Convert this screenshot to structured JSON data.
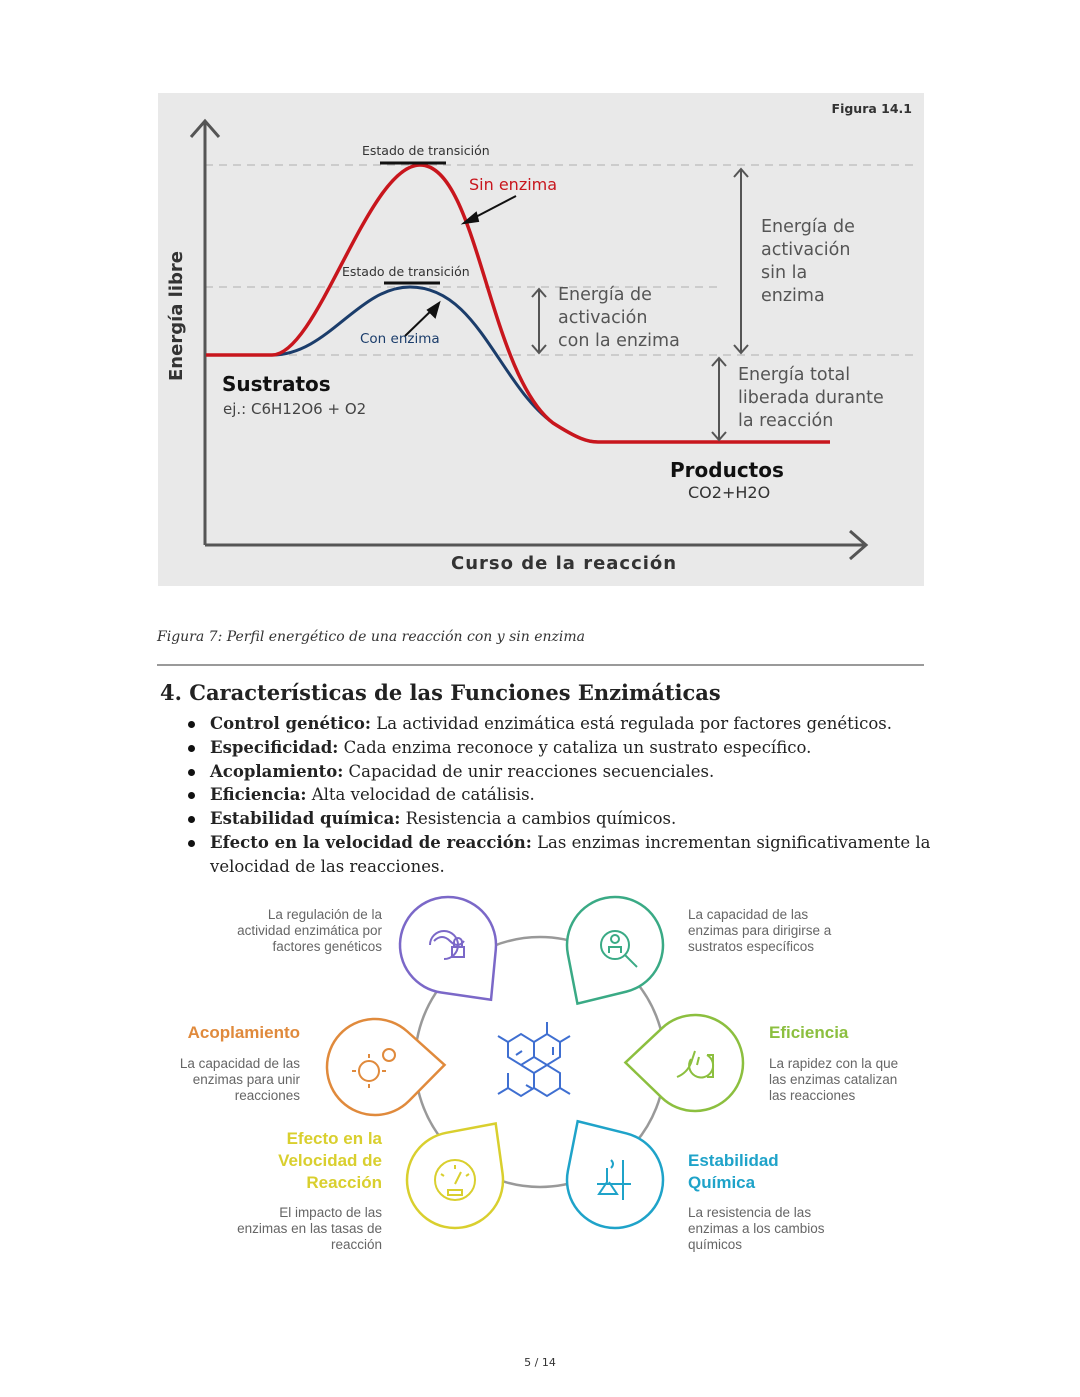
{
  "figure1": {
    "tag": "Figura 14.1",
    "y_axis_label": "Energía libre",
    "x_axis_label": "Curso de la reacción",
    "transition_state_label_1": "Estado de transición",
    "transition_state_label_2": "Estado de transición",
    "without_enzyme": "Sin enzima",
    "with_enzyme": "Con enzima",
    "activation_with": [
      "Energía de",
      "activación",
      "con la enzima"
    ],
    "activation_without": [
      "Energía de",
      "activación",
      "sin la",
      "enzima"
    ],
    "total_energy": [
      "Energía total",
      "liberada durante",
      "la reacción"
    ],
    "substrates_title": "Sustratos",
    "substrates_example": "ej.:  C6H12O6 + O2",
    "products_title": "Productos",
    "products_formula": "CO2+H2O",
    "colors": {
      "without_enzyme": "#c8161d",
      "with_enzyme": "#1b3d6b"
    }
  },
  "caption": "Figura 7: Perfil energético de una reacción con y sin enzima",
  "section": {
    "title": "4. Características de las Funciones Enzimáticas",
    "items": [
      {
        "term": "Control genético:",
        "text": " La actividad enzimática está regulada por factores genéticos."
      },
      {
        "term": "Especificidad:",
        "text": " Cada enzima reconoce y cataliza un sustrato específico."
      },
      {
        "term": "Acoplamiento:",
        "text": " Capacidad de unir reacciones secuenciales."
      },
      {
        "term": "Eficiencia:",
        "text": " Alta velocidad de catálisis."
      },
      {
        "term": "Estabilidad química:",
        "text": " Resistencia a cambios químicos."
      },
      {
        "term": "Efecto en la velocidad de reacción:",
        "text": " Las enzimas incrementan significativamente la velocidad de las reacciones."
      }
    ]
  },
  "infographic": {
    "genetic": {
      "desc": [
        "La regulación de la",
        "actividad enzimática por",
        "factores genéticos"
      ],
      "color": "#7b68c8",
      "icon": "dna-lock-icon"
    },
    "specificity": {
      "desc": [
        "La capacidad de las",
        "enzimas para dirigirse a",
        "sustratos específicos"
      ],
      "color": "#3aaa85",
      "icon": "magnifier-icon"
    },
    "coupling": {
      "title": "Acoplamiento",
      "desc": [
        "La capacidad de las",
        "enzimas para unir",
        "reacciones"
      ],
      "color": "#e08a3c",
      "icon": "gears-icon"
    },
    "efficiency": {
      "title": "Eficiencia",
      "desc": [
        "La rapidez con la que",
        "las enzimas catalizan",
        "las reacciones"
      ],
      "color": "#8cbf3f",
      "icon": "hand-stopwatch-icon"
    },
    "speed": {
      "title": [
        "Efecto en la",
        "Velocidad de",
        "Reacción"
      ],
      "desc": [
        "El impacto de las",
        "enzimas en las tasas de",
        "reacción"
      ],
      "color": "#d9cf2e",
      "icon": "speedometer-icon"
    },
    "stability": {
      "title": [
        "Estabilidad",
        "Química"
      ],
      "desc": [
        "La resistencia de las",
        "enzimas a los cambios",
        "químicos"
      ],
      "color": "#1fa3c9",
      "icon": "flask-icon"
    },
    "center_icon": "molecule-icon",
    "center_color": "#3f6fd1"
  },
  "page_number": "5 / 14"
}
